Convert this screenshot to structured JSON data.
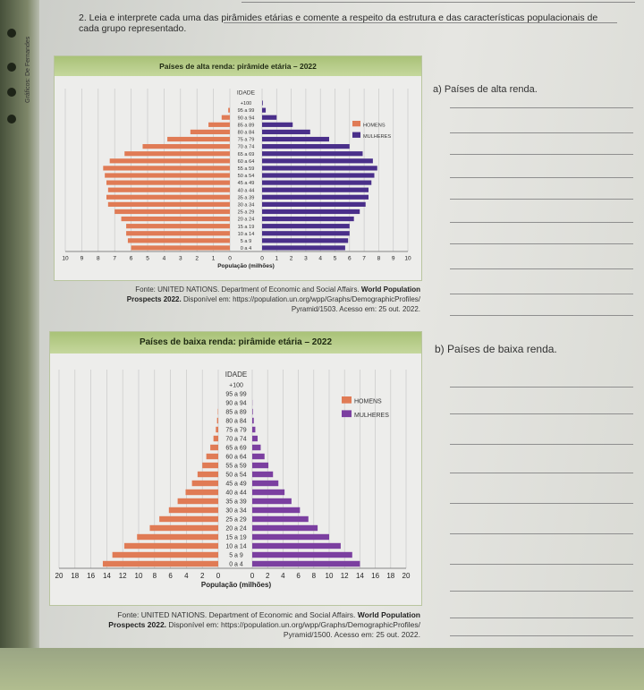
{
  "question": {
    "text": "2. Leia e interprete cada uma das pirâmides etárias e comente a respeito da estrutura e das características populacionais de cada grupo representado."
  },
  "sidebar": {
    "label": "Gráficos: De Fernandes"
  },
  "answers": {
    "a_label": "a) Países de alta renda.",
    "b_label": "b) Países de baixa renda."
  },
  "chart_data": [
    {
      "type": "bar",
      "title": "Países de alta renda: pirâmide etária – 2022",
      "categories": [
        "0 a 4",
        "5 a 9",
        "10 a 14",
        "15 a 19",
        "20 a 24",
        "25 a 29",
        "30 a 34",
        "35 a 39",
        "40 a 44",
        "45 a 49",
        "50 a 54",
        "55 a 59",
        "60 a 64",
        "65 a 69",
        "70 a 74",
        "75 a 79",
        "80 a 84",
        "85 a 89",
        "90 a 94",
        "95 a 99",
        "+100"
      ],
      "series": [
        {
          "name": "HOMENS",
          "values": [
            -6.0,
            -6.2,
            -6.3,
            -6.3,
            -6.6,
            -7.0,
            -7.4,
            -7.5,
            -7.4,
            -7.5,
            -7.6,
            -7.7,
            -7.3,
            -6.4,
            -5.3,
            -3.8,
            -2.4,
            -1.3,
            -0.5,
            -0.1,
            0
          ]
        },
        {
          "name": "MULHERES",
          "values": [
            5.7,
            5.9,
            6.0,
            6.0,
            6.3,
            6.7,
            7.1,
            7.3,
            7.3,
            7.5,
            7.7,
            7.9,
            7.6,
            6.9,
            6.0,
            4.6,
            3.3,
            2.1,
            1.0,
            0.25,
            0.05
          ]
        }
      ],
      "ylabel": "IDADE",
      "xlabel": "População (milhões)",
      "xlim": [
        -10,
        10
      ],
      "xticks": [
        "10",
        "9",
        "8",
        "7",
        "6",
        "5",
        "4",
        "3",
        "2",
        "1",
        "0",
        "0",
        "1",
        "2",
        "3",
        "4",
        "5",
        "6",
        "7",
        "8",
        "9",
        "10"
      ],
      "legend": [
        "HOMENS",
        "MULHERES"
      ],
      "colors": {
        "homens": "#e07b55",
        "mulheres": "#4a2f8a"
      },
      "source": {
        "line1": "Fonte: UNITED NATIONS. Department of Economic and Social Affairs.",
        "bold1": "World Population",
        "bold2": "Prospects 2022.",
        "line2": "Disponível em: https://population.un.org/wpp/Graphs/DemographicProfiles/",
        "line3": "Pyramid/1503. Acesso em: 25 out. 2022."
      }
    },
    {
      "type": "bar",
      "title": "Países de baixa renda: pirâmide etária – 2022",
      "categories": [
        "0 a 4",
        "5 a 9",
        "10 a 14",
        "15 a 19",
        "20 a 24",
        "25 a 29",
        "30 a 34",
        "35 a 39",
        "40 a 44",
        "45 a 49",
        "50 a 54",
        "55 a 59",
        "60 a 64",
        "65 a 69",
        "70 a 74",
        "75 a 79",
        "80 a 84",
        "85 a 89",
        "90 a 94",
        "95 a 99",
        "+100"
      ],
      "series": [
        {
          "name": "HOMENS",
          "values": [
            -14.5,
            -13.3,
            -11.8,
            -10.2,
            -8.6,
            -7.4,
            -6.2,
            -5.1,
            -4.1,
            -3.3,
            -2.6,
            -2.0,
            -1.5,
            -1.0,
            -0.6,
            -0.3,
            -0.15,
            -0.05,
            0,
            0,
            0
          ]
        },
        {
          "name": "MULHERES",
          "values": [
            14.0,
            13.0,
            11.5,
            10.0,
            8.5,
            7.3,
            6.2,
            5.1,
            4.2,
            3.4,
            2.7,
            2.1,
            1.6,
            1.1,
            0.7,
            0.4,
            0.2,
            0.08,
            0.02,
            0,
            0
          ]
        }
      ],
      "ylabel": "IDADE",
      "xlabel": "População (milhões)",
      "xlim": [
        -20,
        20
      ],
      "xticks": [
        "20",
        "18",
        "16",
        "14",
        "12",
        "10",
        "8",
        "6",
        "4",
        "2",
        "0",
        "0",
        "2",
        "4",
        "6",
        "8",
        "10",
        "12",
        "14",
        "16",
        "18",
        "20"
      ],
      "legend": [
        "HOMENS",
        "MULHERES"
      ],
      "colors": {
        "homens": "#e07b55",
        "mulheres": "#7b3fa0"
      },
      "source": {
        "line1": "Fonte: UNITED NATIONS. Department of Economic and Social Affairs.",
        "bold1": "World Population",
        "bold2": "Prospects 2022.",
        "line2": "Disponível em: https://population.un.org/wpp/Graphs/DemographicProfiles/",
        "line3": "Pyramid/1500. Acesso em: 25 out. 2022."
      }
    }
  ]
}
